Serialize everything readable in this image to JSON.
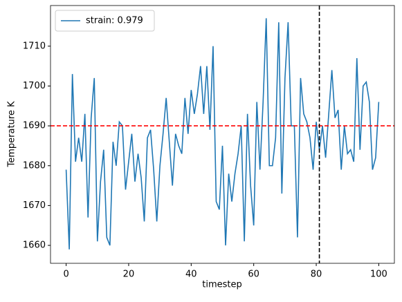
{
  "chart_data": {
    "type": "line",
    "x_label": "timestep",
    "y_label": "Temperature K",
    "x": [
      0,
      1,
      2,
      3,
      4,
      5,
      6,
      7,
      8,
      9,
      10,
      11,
      12,
      13,
      14,
      15,
      16,
      17,
      18,
      19,
      20,
      21,
      22,
      23,
      24,
      25,
      26,
      27,
      28,
      29,
      30,
      31,
      32,
      33,
      34,
      35,
      36,
      37,
      38,
      39,
      40,
      41,
      42,
      43,
      44,
      45,
      46,
      47,
      48,
      49,
      50,
      51,
      52,
      53,
      54,
      55,
      56,
      57,
      58,
      59,
      60,
      61,
      62,
      63,
      64,
      65,
      66,
      67,
      68,
      69,
      70,
      71,
      72,
      73,
      74,
      75,
      76,
      77,
      78,
      79,
      80,
      81,
      82,
      83,
      84,
      85,
      86,
      87,
      88,
      89,
      90,
      91,
      92,
      93,
      94,
      95,
      96,
      97,
      98,
      99,
      100
    ],
    "series": [
      {
        "name": "strain: 0.979",
        "color": "#1f77b4",
        "values": [
          1679,
          1659,
          1703,
          1681,
          1687,
          1681,
          1693,
          1667,
          1692,
          1702,
          1661,
          1676,
          1684,
          1662,
          1660,
          1686,
          1680,
          1691,
          1690,
          1674,
          1681,
          1688,
          1676,
          1683,
          1677,
          1666,
          1687,
          1689,
          1679,
          1666,
          1680,
          1688,
          1697,
          1686,
          1675,
          1688,
          1685,
          1683,
          1697,
          1688,
          1699,
          1693,
          1698,
          1705,
          1693,
          1705,
          1689,
          1710,
          1671,
          1669,
          1685,
          1660,
          1678,
          1671,
          1678,
          1683,
          1690,
          1661,
          1693,
          1675,
          1665,
          1696,
          1679,
          1696,
          1717,
          1680,
          1680,
          1687,
          1716,
          1673,
          1702,
          1716,
          1690,
          1690,
          1662,
          1702,
          1693,
          1691,
          1687,
          1679,
          1691,
          1684,
          1690,
          1682,
          1693,
          1704,
          1692,
          1694,
          1679,
          1690,
          1683,
          1684,
          1681,
          1707,
          1684,
          1700,
          1701,
          1696,
          1679,
          1682,
          1696
        ]
      }
    ],
    "hline": 1690,
    "hline_color": "#ff0000",
    "vline": 81,
    "vline_color": "#000000",
    "xlim": [
      -5,
      105
    ],
    "ylim": [
      1655.5,
      1720.2
    ],
    "xticks": [
      0,
      20,
      40,
      60,
      80,
      100
    ],
    "yticks": [
      1660,
      1670,
      1680,
      1690,
      1700,
      1710
    ],
    "legend": "upper left",
    "grid": false
  }
}
